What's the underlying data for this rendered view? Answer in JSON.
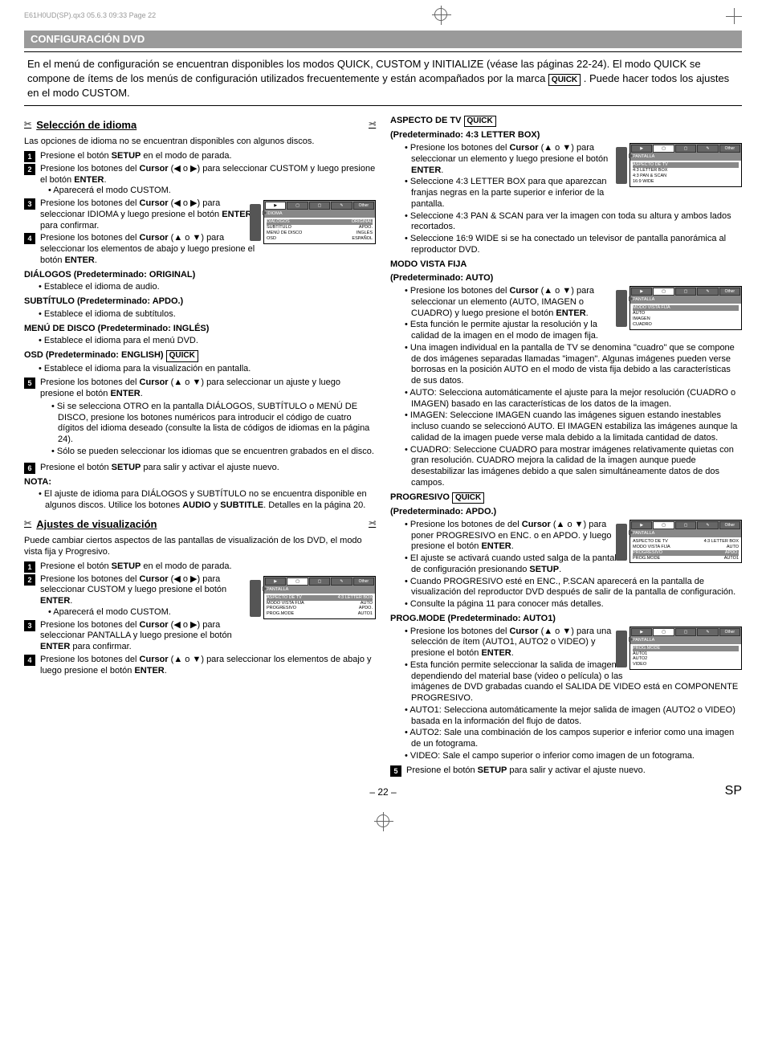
{
  "header_text": "E61H0UD(SP).qx3  05.6.3  09:33  Page 22",
  "banner": "CONFIGURACIÓN DVD",
  "intro": {
    "part1": "En el menú de configuración se encuentran disponibles los modos QUICK, CUSTOM y INITIALIZE (véase las páginas 22-24). El modo QUICK se compone de ítems de los menús de configuración utilizados frecuentemente y están acompañados por la marca ",
    "quick": "QUICK",
    "part2": ". Puede hacer todos los ajustes en el modo CUSTOM."
  },
  "left": {
    "title1": "Selección de idioma",
    "lead1": "Las opciones de idioma no se encuentran disponibles con algunos discos.",
    "step1": "Presione el botón SETUP en el modo de parada.",
    "step2": "Presione los botones del Cursor (◀ o ▶) para seleccionar CUSTOM y luego presione el botón ENTER.",
    "step2_sub": "• Aparecerá el modo CUSTOM.",
    "step3": "Presione los botones del Cursor (◀ o ▶) para seleccionar IDIOMA y luego presione el botón ENTER para confirmar.",
    "step4": "Presione los botones del Cursor (▲ o ▼) para seleccionar los elementos de abajo y luego presione el botón ENTER.",
    "dialogos_h": "DIÁLOGOS (Predeterminado: ORIGINAL)",
    "dialogos_b": "Establece el idioma de audio.",
    "subtitulo_h": "SUBTÍTULO (Predeterminado: APDO.)",
    "subtitulo_b": "Establece el idioma de subtítulos.",
    "menudisco_h": "MENÚ DE DISCO (Predeterminado: INGLÉS)",
    "menudisco_b": "Establece el idioma para el menú DVD.",
    "osd_h": "OSD (Predeterminado: ENGLISH)",
    "osd_b": "Establece el idioma para la visualización en pantalla.",
    "step5": "Presione los botones del Cursor (▲ o ▼) para seleccionar un ajuste y luego presione el botón ENTER.",
    "step5_sub1": "Si se selecciona OTRO en la pantalla DIÁLOGOS, SUBTÍTULO o MENÚ DE DISCO, presione los botones numéricos para introducir el código de cuatro dígitos del idioma deseado (consulte la lista de códigos de idiomas en la página 24).",
    "step5_sub2": "Sólo se pueden seleccionar los idiomas que se encuentren grabados en el disco.",
    "step6": "Presione el botón SETUP para salir y activar el ajuste nuevo.",
    "nota_h": "NOTA:",
    "nota_b": "El ajuste de idioma para DIÁLOGOS y SUBTÍTULO no se encuentra disponible en algunos discos. Utilice los botones AUDIO y SUBTITLE. Detalles en la página 20.",
    "title2": "Ajustes de visualización",
    "lead2": "Puede cambiar ciertos aspectos de las pantallas de visualización de los DVD, el modo vista fija y Progresivo.",
    "vstep1": "Presione el botón SETUP en el modo de parada.",
    "vstep2": "Presione los botones del Cursor (◀ o ▶) para seleccionar CUSTOM y luego presione el botón ENTER.",
    "vstep2_sub": "• Aparecerá el modo CUSTOM.",
    "vstep3": "Presione los botones del Cursor (◀ o ▶) para seleccionar PANTALLA y luego presione el botón ENTER para confirmar.",
    "vstep4": "Presione los botones del Cursor (▲ o ▼) para seleccionar los elementos de abajo y luego presione el botón ENTER.",
    "fig1": {
      "heading": "IDIOMA",
      "rows": [
        [
          "DIÁLOGOS",
          "ORIGINAL"
        ],
        [
          "SUBTÍTULO",
          "APDO."
        ],
        [
          "MENÚ DE DISCO",
          "INGLÉS"
        ],
        [
          "OSD",
          "ESPAÑOL"
        ]
      ]
    },
    "fig2": {
      "heading": "PANTALLA",
      "rows": [
        [
          "ASPECTO DE TV",
          "4:3 LETTER BOX"
        ],
        [
          "MODO VISTA FIJA",
          "AUTO"
        ],
        [
          "PROGRESIVO",
          "APDO."
        ],
        [
          "PROG.MODE",
          "AUTO1"
        ]
      ]
    }
  },
  "right": {
    "aspecto_h": "ASPECTO DE TV",
    "aspecto_def": "(Predeterminado: 4:3 LETTER BOX)",
    "aspecto_b1": "Presione los botones del Cursor (▲ o ▼) para seleccionar un elemento y luego presione el botón ENTER.",
    "aspecto_b2": "Seleccione 4:3 LETTER BOX para que aparezcan franjas negras en la parte superior e inferior de la pantalla.",
    "aspecto_b3": "Seleccione 4:3 PAN & SCAN para ver la imagen con toda su altura y ambos lados recortados.",
    "aspecto_b4": "Seleccione 16:9 WIDE si se ha conectado un televisor de pantalla panorámica al reproductor DVD.",
    "fig_aspecto": {
      "heading": "PANTALLA",
      "rows": [
        [
          "ASPECTO DE TV",
          ""
        ],
        [
          "4:3 LETTER BOX",
          ""
        ],
        [
          "4:3 PAN & SCAN",
          ""
        ],
        [
          "16:9 WIDE",
          ""
        ]
      ]
    },
    "vista_h": "MODO VISTA FIJA",
    "vista_def": "(Predeterminado: AUTO)",
    "vista_b1": "Presione los botones del Cursor (▲ o ▼) para seleccionar un elemento (AUTO, IMAGEN o CUADRO) y luego presione el botón ENTER.",
    "vista_b2": "Esta función le permite ajustar la resolución y la calidad de la imagen en el modo de imagen fija.",
    "vista_b3": "Una imagen individual en la pantalla de TV se denomina \"cuadro\" que se compone de dos imágenes separadas llamadas \"imagen\". Algunas imágenes pueden verse borrosas en la posición AUTO en el modo de vista fija debido a las características de sus datos.",
    "vista_b4": "AUTO: Selecciona automáticamente el ajuste para la mejor resolución (CUADRO o IMAGEN) basado en las características de los datos de la imagen.",
    "vista_b5": "IMAGEN: Seleccione IMAGEN cuando las imágenes siguen estando inestables incluso cuando se seleccionó AUTO. El IMAGEN estabiliza las imágenes aunque la calidad de la imagen puede verse mala debido a la limitada cantidad de datos.",
    "vista_b6": "CUADRO: Seleccione CUADRO para mostrar imágenes relativamente quietas con gran resolución. CUADRO mejora la calidad de la imagen aunque puede desestabilizar las imágenes debido a que salen simultáneamente datos de dos campos.",
    "fig_vista": {
      "heading": "PANTALLA",
      "rows": [
        [
          "MODO VISTA FIJA",
          ""
        ],
        [
          "AUTO",
          ""
        ],
        [
          "IMAGEN",
          ""
        ],
        [
          "CUADRO",
          ""
        ]
      ]
    },
    "prog_h": "PROGRESIVO",
    "prog_def": "(Predeterminado: APDO.)",
    "prog_b1": "Presione los botones de del Cursor (▲ o ▼) para poner PROGRESIVO en ENC. o en APDO. y luego presione el botón ENTER.",
    "prog_b2": "El ajuste se activará cuando usted salga de la pantalla de configuración presionando SETUP.",
    "prog_b3": "Cuando PROGRESIVO esté en ENC., P.SCAN aparecerá en la pantalla de visualización del reproductor DVD después de salir de la pantalla de configuración.",
    "prog_b4": "Consulte la página 11 para conocer más detalles.",
    "fig_prog": {
      "heading": "PANTALLA",
      "rows": [
        [
          "ASPECTO DE TV",
          "4:3 LETTER BOX"
        ],
        [
          "MODO VISTA FIJA",
          "AUTO"
        ],
        [
          "PROGRESIVO",
          "APDO."
        ],
        [
          "PROG.MODE",
          "AUTO1"
        ]
      ]
    },
    "pmode_h": "PROG.MODE (Predeterminado: AUTO1)",
    "pmode_b1": "Presione los botones del Cursor (▲ o ▼) para una selección de ítem (AUTO1, AUTO2 o VIDEO) y presione el botón ENTER.",
    "pmode_b2": "Esta función permite seleccionar la salida de imagen dependiendo del material base (video o película) o las imágenes de DVD grabadas cuando el SALIDA DE VIDEO está en COMPONENTE PROGRESIVO.",
    "pmode_b3": "AUTO1: Selecciona automáticamente la mejor salida de imagen (AUTO2 o VIDEO) basada en la información del flujo de datos.",
    "pmode_b4": "AUTO2: Sale una combinación de los campos superior e inferior como una imagen de un fotograma.",
    "pmode_b5": "VIDEO: Sale el campo superior o inferior como imagen de un fotograma.",
    "fig_pmode": {
      "heading": "PANTALLA",
      "rows": [
        [
          "PROG.MODE",
          ""
        ],
        [
          "AUTO1",
          ""
        ],
        [
          "AUTO2",
          ""
        ],
        [
          "VIDEO",
          ""
        ]
      ]
    },
    "step5": "Presione el botón SETUP para salir y activar el ajuste nuevo."
  },
  "footer": {
    "page": "– 22 –",
    "sp": "SP"
  },
  "tabs": [
    "▶",
    "▢",
    "▢",
    "✎",
    "Other"
  ]
}
